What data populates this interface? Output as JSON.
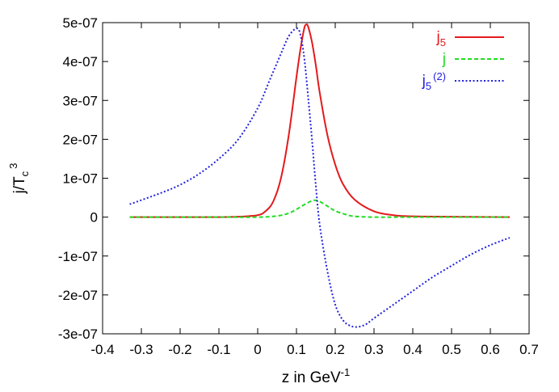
{
  "chart_data": {
    "type": "line",
    "xlabel": {
      "text": "z in GeV",
      "sup": "-1"
    },
    "ylabel": {
      "text": "j/T",
      "sub": "c",
      "sup": "3"
    },
    "xlim": [
      -0.4,
      0.7
    ],
    "ylim": [
      -3e-07,
      5e-07
    ],
    "xticks": [
      -0.4,
      -0.3,
      -0.2,
      -0.1,
      0,
      0.1,
      0.2,
      0.3,
      0.4,
      0.5,
      0.6,
      0.7
    ],
    "xtick_labels": [
      "-0.4",
      "-0.3",
      "-0.2",
      "-0.1",
      "0",
      "0.1",
      "0.2",
      "0.3",
      "0.4",
      "0.5",
      "0.6",
      "0.7"
    ],
    "yticks": [
      -3e-07,
      -2e-07,
      -1e-07,
      0,
      1e-07,
      2e-07,
      3e-07,
      4e-07,
      5e-07
    ],
    "ytick_labels": [
      "-3e-07",
      "-2e-07",
      "-1e-07",
      "0",
      "1e-07",
      "2e-07",
      "3e-07",
      "4e-07",
      "5e-07"
    ],
    "grid": false,
    "legend_position": "top-right",
    "series": [
      {
        "name": "j",
        "name_sub": "5",
        "name_sup": "",
        "color": "#e41a1c",
        "style": "solid",
        "x": [
          -0.33,
          -0.2,
          -0.1,
          -0.05,
          0,
          0.02,
          0.04,
          0.06,
          0.08,
          0.1,
          0.11,
          0.12,
          0.125,
          0.13,
          0.14,
          0.15,
          0.16,
          0.18,
          0.2,
          0.22,
          0.25,
          0.3,
          0.35,
          0.4,
          0.5,
          0.65
        ],
        "y": [
          0,
          0,
          0,
          1e-09,
          5e-09,
          1.5e-08,
          4e-08,
          1e-07,
          2.1e-07,
          3.6e-07,
          4.3e-07,
          4.85e-07,
          4.95e-07,
          4.9e-07,
          4.5e-07,
          3.9e-07,
          3.2e-07,
          2.1e-07,
          1.35e-07,
          8.5e-08,
          4.5e-08,
          1.5e-08,
          5e-09,
          2e-09,
          1e-09,
          0
        ]
      },
      {
        "name": "j",
        "name_sub": "",
        "name_sup": "",
        "color": "#22dd22",
        "style": "dashed",
        "x": [
          -0.33,
          -0.1,
          0,
          0.05,
          0.08,
          0.1,
          0.12,
          0.14,
          0.15,
          0.16,
          0.18,
          0.2,
          0.23,
          0.25,
          0.3,
          0.4,
          0.65
        ],
        "y": [
          0,
          0,
          0,
          3e-09,
          1e-08,
          2e-08,
          3.2e-08,
          4.2e-08,
          4.3e-08,
          4e-08,
          2.8e-08,
          1.6e-08,
          6e-09,
          2e-09,
          0,
          0,
          0
        ]
      },
      {
        "name": "j",
        "name_sub": "5",
        "name_sup": "(2)",
        "color": "#2222dd",
        "style": "dotted",
        "x": [
          -0.33,
          -0.25,
          -0.2,
          -0.15,
          -0.1,
          -0.05,
          0,
          0.03,
          0.06,
          0.08,
          0.1,
          0.11,
          0.12,
          0.13,
          0.14,
          0.15,
          0.16,
          0.18,
          0.2,
          0.22,
          0.24,
          0.26,
          0.28,
          0.3,
          0.35,
          0.4,
          0.45,
          0.5,
          0.55,
          0.6,
          0.65
        ],
        "y": [
          3.3e-08,
          6.2e-08,
          8.3e-08,
          1.12e-07,
          1.5e-07,
          2e-07,
          2.8e-07,
          3.5e-07,
          4.2e-07,
          4.65e-07,
          4.85e-07,
          4.7e-07,
          4.1e-07,
          3.1e-07,
          2e-07,
          8e-08,
          -2e-08,
          -1.4e-07,
          -2.25e-07,
          -2.65e-07,
          -2.8e-07,
          -2.82e-07,
          -2.75e-07,
          -2.6e-07,
          -2.25e-07,
          -1.9e-07,
          -1.55e-07,
          -1.25e-07,
          -9.6e-08,
          -7.2e-08,
          -5.3e-08
        ]
      }
    ]
  }
}
